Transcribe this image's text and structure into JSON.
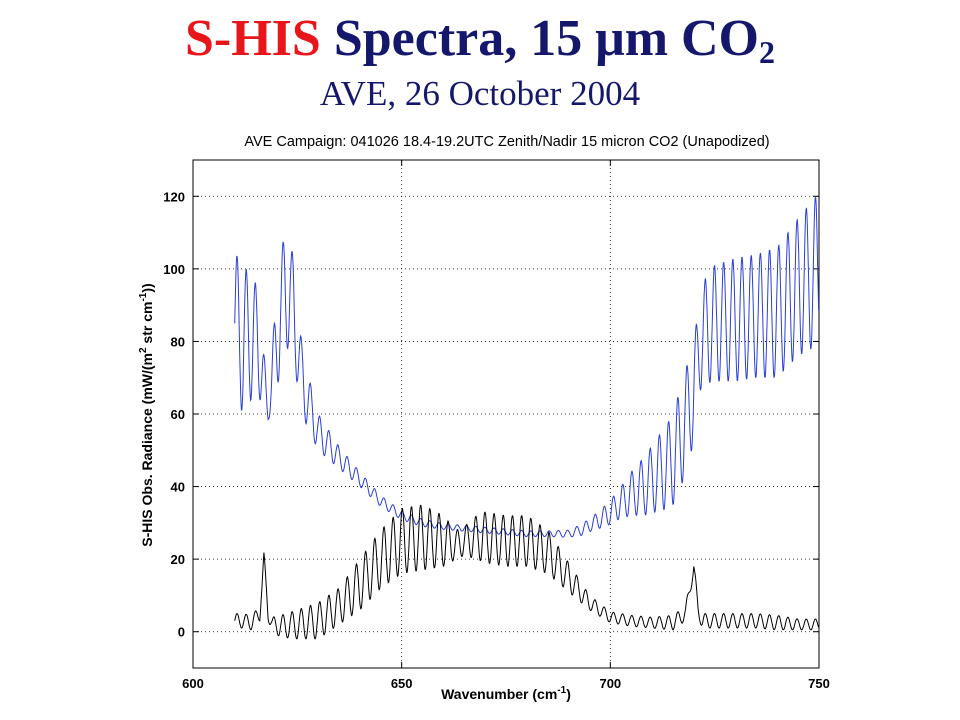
{
  "slide": {
    "title_part1": "S-HIS",
    "title_part2": "Spectra, 15 μm CO",
    "title_sub": "2",
    "subtitle": "AVE, 26 October 2004"
  },
  "chart_data": {
    "type": "line",
    "title": "AVE Campaign: 041026  18.4-19.2UTC Zenith/Nadir 15 micron CO2 (Unapodized)",
    "xlabel": "Wavenumber (cm",
    "xlabel_sup": "-1",
    "xlabel_end": ")",
    "ylabel": "S-HIS Obs. Radiance (mW/(m",
    "ylabel_sup1": "2",
    "ylabel_mid": " str cm",
    "ylabel_sup2": "-1",
    "ylabel_end": "))",
    "xlim": [
      600,
      750
    ],
    "ylim": [
      -10,
      130
    ],
    "xticks": [
      600,
      650,
      700,
      750
    ],
    "yticks": [
      0,
      20,
      40,
      60,
      80,
      100,
      120
    ],
    "grid": true,
    "colors": {
      "upper": "#2b3fd6",
      "lower": "#000000"
    },
    "series": [
      {
        "x": [
          610,
          612,
          614,
          616,
          618,
          620,
          622,
          624,
          626,
          628,
          630,
          635,
          640,
          645,
          650,
          655,
          660,
          665,
          670,
          675,
          680,
          685,
          690,
          693,
          696,
          699,
          702,
          705,
          708,
          711,
          714,
          716,
          718,
          720,
          721,
          722,
          725,
          730,
          735,
          740,
          745,
          750
        ],
        "y": [
          85,
          80,
          82,
          78,
          60,
          80,
          95,
          90,
          70,
          62,
          55,
          48,
          42,
          36,
          32,
          30,
          29,
          28.5,
          28,
          27.5,
          27,
          27,
          27,
          28,
          30,
          32,
          35,
          38,
          40,
          43,
          46,
          50,
          58,
          66,
          76,
          82,
          85,
          86,
          87,
          88,
          95,
          100
        ],
        "amp": [
          20,
          20,
          18,
          14,
          2,
          14,
          16,
          14,
          10,
          7,
          5,
          3,
          2,
          1.5,
          1.2,
          1,
          0.8,
          0.8,
          0.8,
          0.8,
          0.8,
          0.8,
          1,
          1.5,
          2,
          3,
          4,
          6,
          8,
          10,
          12,
          14,
          14,
          14,
          12,
          14,
          16,
          17,
          17,
          18,
          19,
          21
        ]
      },
      {
        "x": [
          610,
          612,
          614,
          616,
          617,
          618,
          619,
          621,
          625,
          630,
          635,
          640,
          645,
          650,
          655,
          660,
          663,
          665,
          668,
          670,
          675,
          680,
          685,
          690,
          695,
          700,
          705,
          710,
          715,
          718,
          720,
          721,
          722,
          725,
          730,
          735,
          740,
          745,
          750
        ],
        "y": [
          3,
          3,
          2.5,
          5,
          20,
          5,
          2,
          1.5,
          2,
          3,
          7,
          13,
          20,
          25,
          26,
          25,
          24,
          25,
          26,
          26,
          25,
          25,
          22,
          15,
          8,
          4,
          3,
          2.5,
          2.5,
          5,
          18,
          6,
          3,
          3,
          3,
          3,
          2.5,
          2,
          2
        ],
        "amp": [
          2,
          2,
          2,
          2,
          2,
          2,
          2,
          3,
          4,
          5,
          5,
          7,
          8,
          9,
          9,
          7,
          4,
          4,
          6,
          7,
          7,
          7,
          6,
          4,
          2,
          1.5,
          1.5,
          1.5,
          2,
          2,
          2,
          2,
          2,
          2,
          2,
          2,
          2,
          1.5,
          1.5
        ]
      }
    ],
    "oscillation_period": 2.2
  }
}
